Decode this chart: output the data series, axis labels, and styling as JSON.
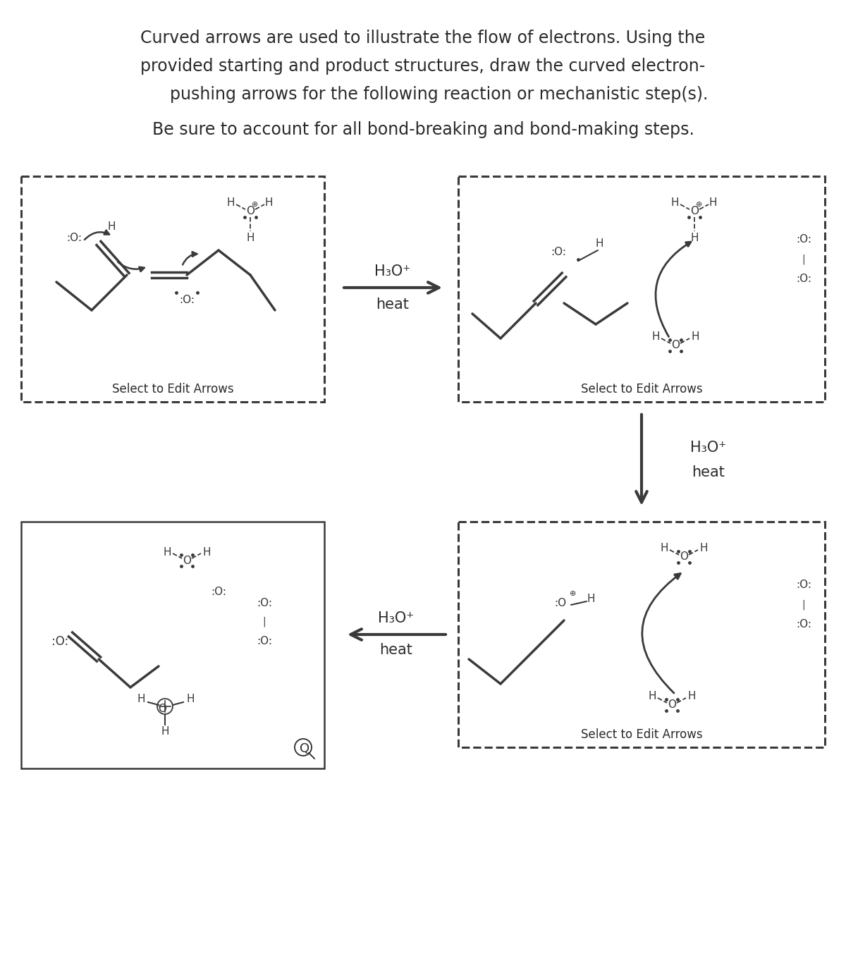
{
  "title_line1": "Curved arrows are used to illustrate the flow of electrons. Using the",
  "title_line2": "provided starting and product structures, draw the curved electron-",
  "title_line3": "      pushing arrows for the following reaction or mechanistic step(s).",
  "subtitle": "Be sure to account for all bond-breaking and bond-making steps.",
  "h3o_label": "H₃O⁺",
  "heat_label": "heat",
  "select_edit": "Select to Edit Arrows",
  "bg_color": "#ffffff",
  "text_color": "#2a2a2a",
  "bond_color": "#3a3a3a",
  "title_fontsize": 17,
  "subtitle_fontsize": 17,
  "label_fontsize": 15,
  "mol_fontsize": 11,
  "select_fontsize": 12
}
